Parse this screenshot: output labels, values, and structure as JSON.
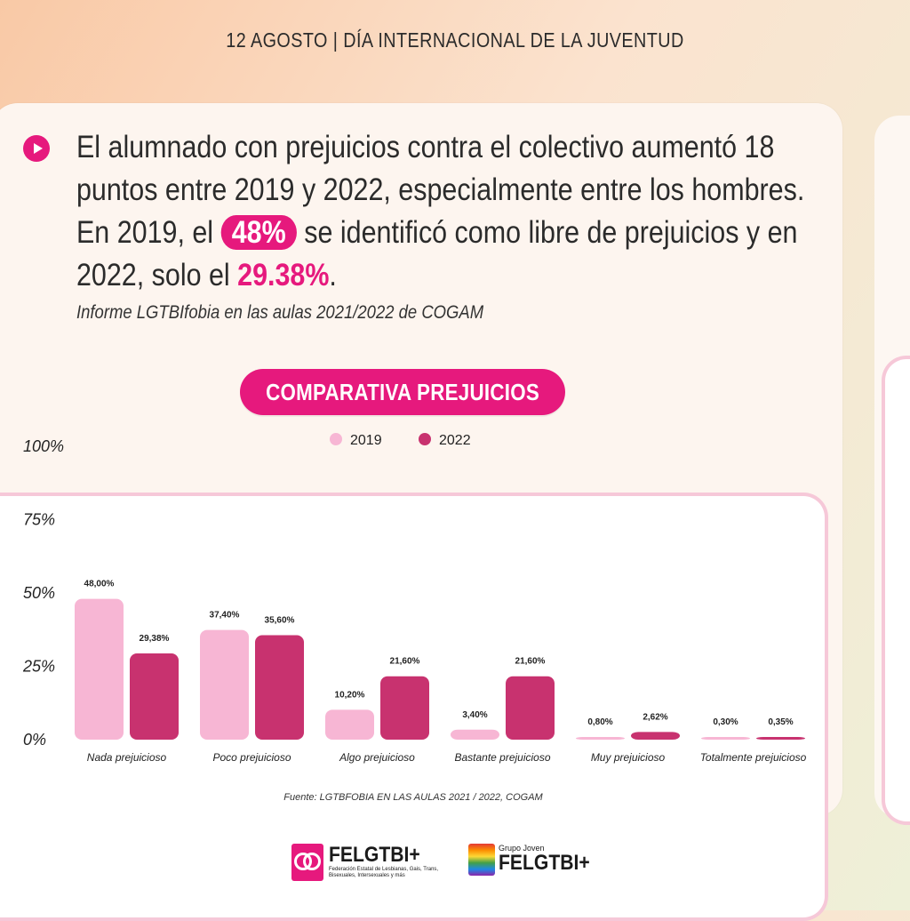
{
  "header": {
    "title": "12 AGOSTO | DÍA INTERNACIONAL DE LA JUVENTUD"
  },
  "headline": {
    "part1": "El alumnado con prejuicios contra el colectivo aumentó 18 puntos entre 2019 y 2022, especialmente entre los hombres. En 2019, el ",
    "pill": "48%",
    "part2": " se identificó como libre de prejuicios y en 2022, solo el ",
    "highlight": "29.38%",
    "part3": "."
  },
  "source_top": "Informe LGTBIfobia en las aulas 2021/2022 de COGAM",
  "chart_title": "COMPARATIVA PREJUICIOS",
  "source_bottom": "Fuente: LGTBFOBIA EN LAS AULAS 2021 / 2022, COGAM",
  "colors": {
    "accent": "#e6197d",
    "series2019": "#f7b6d4",
    "series2022": "#c8326f"
  },
  "chart_data": {
    "type": "bar",
    "categories": [
      "Nada prejuicioso",
      "Poco prejuicioso",
      "Algo prejuicioso",
      "Bastante prejuicioso",
      "Muy prejuicioso",
      "Totalmente prejuicioso"
    ],
    "series": [
      {
        "name": "2019",
        "values": [
          48.0,
          37.4,
          10.2,
          3.4,
          0.8,
          0.3
        ],
        "labels": [
          "48,00%",
          "37,40%",
          "10,20%",
          "3,40%",
          "0,80%",
          "0,30%"
        ]
      },
      {
        "name": "2022",
        "values": [
          29.38,
          35.6,
          21.6,
          21.6,
          2.62,
          0.35
        ],
        "labels": [
          "29,38%",
          "35,60%",
          "21,60%",
          "21,60%",
          "2,62%",
          "0,35%"
        ]
      }
    ],
    "yticks": [
      "0%",
      "25%",
      "50%",
      "75%",
      "100%"
    ],
    "ylim": [
      0,
      100
    ],
    "legend_position": "top-center",
    "grid": false
  },
  "footer": {
    "logo1_name": "FELGTBI+",
    "logo1_sub": "Federación Estatal de Lesbianas, Gais, Trans, Bisexuales, Intersexuales y más",
    "logo2_small": "Grupo Joven",
    "logo2_name": "FELGTBI+"
  }
}
